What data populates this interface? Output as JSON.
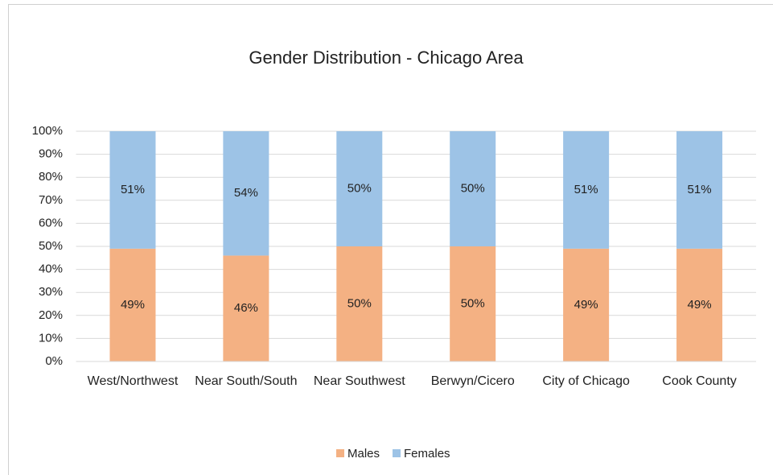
{
  "chart_data": {
    "type": "stacked_bar",
    "title": "Gender Distribution - Chicago Area",
    "categories": [
      "West/Northwest",
      "Near South/South",
      "Near Southwest",
      "Berwyn/Cicero",
      "City of Chicago",
      "Cook County"
    ],
    "series": [
      {
        "name": "Males",
        "color": "#f4b183",
        "values": [
          49,
          46,
          50,
          50,
          49,
          49
        ],
        "value_labels": [
          "49%",
          "46%",
          "50%",
          "50%",
          "49%",
          "49%"
        ]
      },
      {
        "name": "Females",
        "color": "#9dc3e6",
        "values": [
          51,
          54,
          50,
          50,
          51,
          51
        ],
        "value_labels": [
          "51%",
          "54%",
          "50%",
          "50%",
          "51%",
          "51%"
        ]
      }
    ],
    "ylim": [
      0,
      100
    ],
    "yticks": [
      {
        "value": 0,
        "label": "0%"
      },
      {
        "value": 10,
        "label": "10%"
      },
      {
        "value": 20,
        "label": "20%"
      },
      {
        "value": 30,
        "label": "30%"
      },
      {
        "value": 40,
        "label": "40%"
      },
      {
        "value": 50,
        "label": "50%"
      },
      {
        "value": 60,
        "label": "60%"
      },
      {
        "value": 70,
        "label": "70%"
      },
      {
        "value": 80,
        "label": "80%"
      },
      {
        "value": 90,
        "label": "90%"
      },
      {
        "value": 100,
        "label": "100%"
      }
    ],
    "grid": true,
    "legend": "bottom"
  }
}
